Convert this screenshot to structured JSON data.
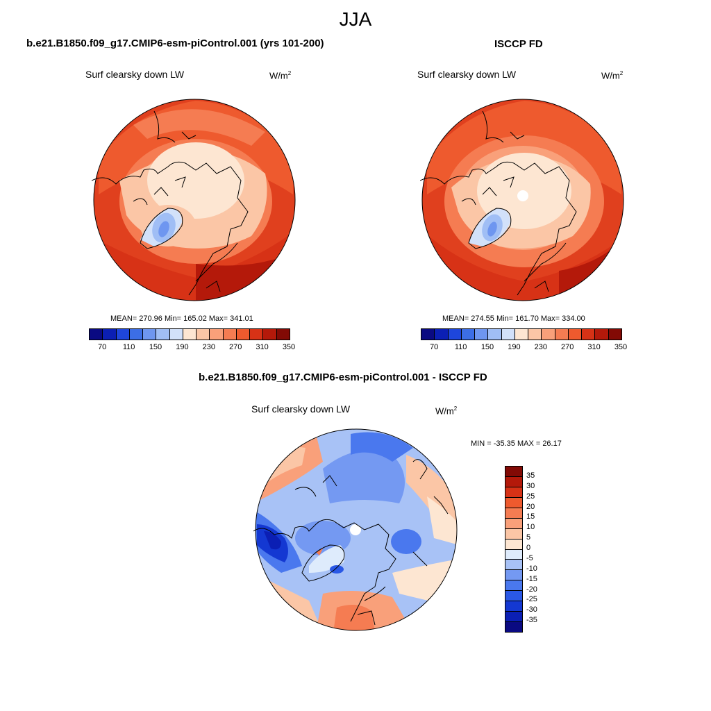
{
  "title": "JJA",
  "panels": [
    {
      "title": "b.e21.B1850.f09_g17.CMIP6-esm-piControl.001 (yrs 101-200)",
      "variable": "Surf clearsky down LW",
      "units": "W/m",
      "units_exp": "2",
      "stats": "MEAN= 270.96  Min= 165.02  Max= 341.01"
    },
    {
      "title": "ISCCP FD",
      "variable": "Surf clearsky down LW",
      "units": "W/m",
      "units_exp": "2",
      "stats": "MEAN= 274.55  Min= 161.70  Max= 334.00"
    },
    {
      "title": "b.e21.B1850.f09_g17.CMIP6-esm-piControl.001 - ISCCP FD",
      "variable": "Surf clearsky down LW",
      "units": "W/m",
      "units_exp": "2",
      "stats": "MIN = -35.35 MAX =  26.17"
    }
  ],
  "abs_colorbar": {
    "colors": [
      "#0a0a82",
      "#0b1fb4",
      "#1e46dc",
      "#3c6ee6",
      "#6e96f0",
      "#a0bef5",
      "#d2e1fa",
      "#fde6d2",
      "#fbc6a6",
      "#f9a07a",
      "#f57c52",
      "#ee5a2e",
      "#d73216",
      "#b4190a",
      "#820a05"
    ],
    "ticks": [
      "70",
      "110",
      "150",
      "190",
      "230",
      "270",
      "310",
      "350"
    ]
  },
  "diff_colorbar": {
    "colors": [
      "#0a0a82",
      "#0b1fb4",
      "#1438d2",
      "#2a58e6",
      "#4a78ee",
      "#7499f2",
      "#a8c2f6",
      "#deebfc",
      "#fde6d2",
      "#fbc6a6",
      "#f9a07a",
      "#f57c52",
      "#ee5a2e",
      "#d73216",
      "#b4190a",
      "#820a05"
    ],
    "ticks": [
      "35",
      "30",
      "25",
      "20",
      "15",
      "10",
      "5",
      "0",
      "-5",
      "-10",
      "-15",
      "-20",
      "-25",
      "-30",
      "-35"
    ]
  }
}
